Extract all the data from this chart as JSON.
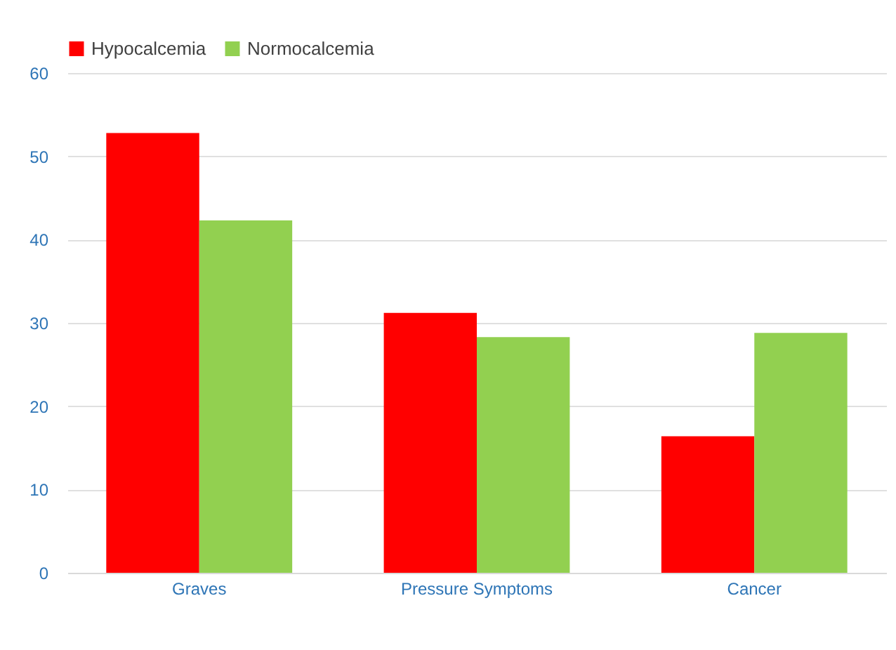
{
  "chart_data": {
    "type": "bar",
    "categories": [
      "Graves",
      "Pressure Symptoms",
      "Cancer"
    ],
    "series": [
      {
        "name": "Hypocalcemia",
        "color": "#ff0000",
        "values": [
          52.8,
          31.2,
          16.4
        ]
      },
      {
        "name": "Normocalcemia",
        "color": "#92d050",
        "values": [
          42.3,
          28.3,
          28.8
        ]
      }
    ],
    "ylim": [
      0,
      60
    ],
    "yticks": [
      0,
      10,
      20,
      30,
      40,
      50,
      60
    ],
    "grid": "y",
    "legend": "top"
  }
}
